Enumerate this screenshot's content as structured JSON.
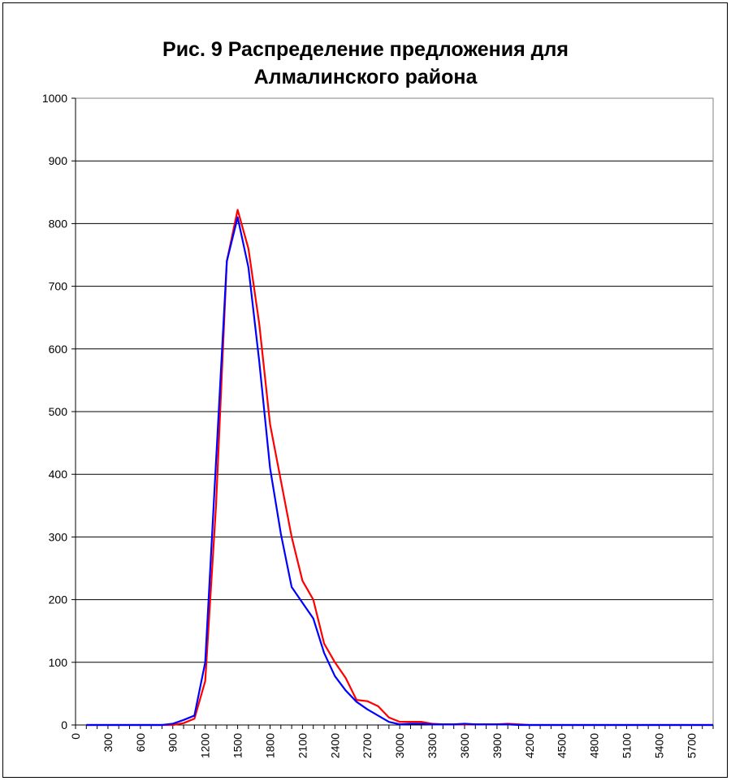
{
  "chart_data": {
    "type": "line",
    "title_lines": [
      "Рис. 9 Распределение предложения для",
      "Алмалинского района"
    ],
    "xlabel": "",
    "ylabel": "",
    "ylim": [
      0,
      1000
    ],
    "y_ticks": [
      0,
      100,
      200,
      300,
      400,
      500,
      600,
      700,
      800,
      900,
      1000
    ],
    "x_tick_labels": [
      "0",
      "300",
      "600",
      "900",
      "1200",
      "1500",
      "1800",
      "2100",
      "2400",
      "2700",
      "3000",
      "3300",
      "3600",
      "3900",
      "4200",
      "4500",
      "4800",
      "5100",
      "5400",
      "5700"
    ],
    "grid": "horizontal",
    "legend": "none",
    "x": [
      100,
      200,
      300,
      400,
      500,
      600,
      700,
      800,
      900,
      1000,
      1100,
      1200,
      1300,
      1400,
      1500,
      1600,
      1700,
      1800,
      1900,
      2000,
      2100,
      2200,
      2300,
      2400,
      2500,
      2600,
      2700,
      2800,
      2900,
      3000,
      3100,
      3200,
      3300,
      3400,
      3500,
      3600,
      3700,
      3800,
      3900,
      4000,
      4100,
      4200,
      4300,
      4400,
      4500,
      4600,
      4700,
      4800,
      4900,
      5000,
      5100,
      5200,
      5300,
      5400,
      5500,
      5600,
      5700,
      5800,
      5900
    ],
    "series": [
      {
        "color": "#ff0000",
        "values": [
          0,
          0,
          0,
          0,
          0,
          0,
          0,
          0,
          0,
          3,
          10,
          70,
          350,
          740,
          822,
          760,
          640,
          480,
          390,
          300,
          230,
          200,
          130,
          100,
          75,
          40,
          38,
          30,
          12,
          5,
          5,
          5,
          2,
          1,
          1,
          1,
          1,
          1,
          1,
          2,
          1,
          0,
          0,
          0,
          0,
          0,
          0,
          0,
          0,
          0,
          0,
          0,
          0,
          0,
          0,
          0,
          0,
          0,
          0
        ]
      },
      {
        "color": "#0000ff",
        "values": [
          0,
          0,
          0,
          0,
          0,
          0,
          0,
          0,
          2,
          8,
          15,
          100,
          420,
          740,
          810,
          730,
          580,
          410,
          305,
          220,
          195,
          170,
          115,
          78,
          55,
          37,
          25,
          15,
          5,
          1,
          2,
          2,
          1,
          1,
          1,
          2,
          1,
          1,
          1,
          1,
          0,
          0,
          0,
          0,
          0,
          0,
          0,
          0,
          0,
          0,
          0,
          0,
          0,
          0,
          0,
          0,
          0,
          0,
          0
        ]
      }
    ]
  }
}
